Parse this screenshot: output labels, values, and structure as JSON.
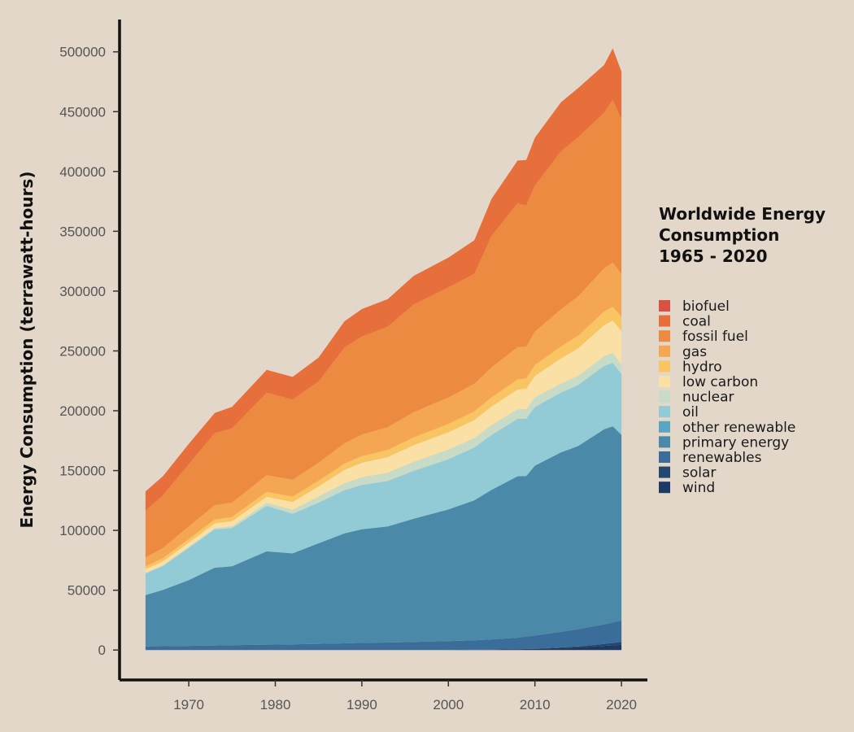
{
  "chart_data": {
    "type": "area",
    "stacked": true,
    "title": "",
    "xlabel": "",
    "ylabel": "Energy Consumption (terrawatt-hours)",
    "legend_title": [
      "Worldwide Energy",
      "Consumption",
      "1965 - 2020"
    ],
    "legend_position": "right",
    "xlim": [
      1962,
      2023
    ],
    "ylim": [
      -25000,
      527000
    ],
    "x_ticks": [
      1970,
      1980,
      1990,
      2000,
      2010,
      2020
    ],
    "y_ticks": [
      0,
      50000,
      100000,
      150000,
      200000,
      250000,
      300000,
      350000,
      400000,
      450000,
      500000
    ],
    "grid": false,
    "x": [
      1965,
      1967,
      1970,
      1973,
      1975,
      1979,
      1982,
      1985,
      1988,
      1990,
      1993,
      1996,
      2000,
      2003,
      2005,
      2008,
      2009,
      2010,
      2013,
      2015,
      2018,
      2019,
      2020
    ],
    "series": [
      {
        "name": "wind",
        "color": "#1c3a63",
        "values": [
          0,
          0,
          0,
          0,
          0,
          0,
          0,
          0,
          0,
          0,
          0,
          0,
          100,
          200,
          300,
          600,
          800,
          1000,
          1800,
          2300,
          3500,
          3900,
          4400
        ]
      },
      {
        "name": "solar",
        "color": "#24476f",
        "values": [
          0,
          0,
          0,
          0,
          0,
          0,
          0,
          0,
          0,
          0,
          0,
          0,
          0,
          0,
          0,
          50,
          100,
          100,
          400,
          700,
          1600,
          2000,
          2400
        ]
      },
      {
        "name": "renewables",
        "color": "#3a6d9a",
        "values": [
          3000,
          3200,
          3500,
          3800,
          4000,
          4500,
          4800,
          5200,
          5600,
          6000,
          6300,
          6800,
          7400,
          8000,
          8600,
          9600,
          10500,
          11000,
          13000,
          14500,
          16400,
          17100,
          18000
        ]
      },
      {
        "name": "primary energy",
        "color": "#4a89a8",
        "values": [
          43000,
          47000,
          55000,
          65000,
          66000,
          78000,
          76000,
          84000,
          92000,
          95000,
          97000,
          103000,
          110000,
          117000,
          125000,
          135000,
          134000,
          142000,
          150000,
          153000,
          163000,
          164000,
          155000
        ]
      },
      {
        "name": "other renewable",
        "color": "#5aa5c4",
        "values": [
          0,
          0,
          0,
          0,
          0,
          0,
          0,
          0,
          0,
          0,
          0,
          0,
          0,
          0,
          0,
          0,
          0,
          0,
          0,
          0,
          0,
          0,
          0
        ]
      },
      {
        "name": "oil",
        "color": "#92cad6",
        "values": [
          18000,
          20000,
          27000,
          32000,
          32000,
          38000,
          33000,
          34000,
          36000,
          37000,
          38000,
          40000,
          42000,
          44000,
          46000,
          48000,
          48000,
          49000,
          50000,
          51000,
          53000,
          53000,
          51000
        ]
      },
      {
        "name": "nuclear",
        "color": "#c8dbc7",
        "values": [
          500,
          600,
          800,
          1200,
          1500,
          2500,
          3500,
          5000,
          6000,
          6500,
          7000,
          7500,
          8000,
          8000,
          8200,
          8000,
          8000,
          8100,
          7500,
          7700,
          8100,
          8300,
          7900
        ]
      },
      {
        "name": "low carbon",
        "color": "#fbe0a6",
        "values": [
          3000,
          3200,
          3500,
          3800,
          4100,
          5000,
          6500,
          8500,
          11000,
          12000,
          13000,
          14000,
          14500,
          15000,
          15500,
          16500,
          17000,
          18000,
          21000,
          23000,
          26000,
          27000,
          28000
        ]
      },
      {
        "name": "hydro",
        "color": "#f9c462",
        "values": [
          2500,
          2700,
          3000,
          3300,
          3600,
          4200,
          4500,
          4800,
          5200,
          5500,
          6000,
          6500,
          7000,
          7300,
          7700,
          8400,
          8600,
          9000,
          10000,
          10500,
          11400,
          11600,
          11800
        ]
      },
      {
        "name": "gas",
        "color": "#f4a653",
        "values": [
          7500,
          8500,
          10500,
          12000,
          12000,
          14000,
          14000,
          15000,
          17000,
          18000,
          19000,
          21000,
          22000,
          23000,
          25000,
          27000,
          26500,
          28000,
          31000,
          33000,
          36000,
          37000,
          36000
        ]
      },
      {
        "name": "fossil fuel",
        "color": "#ed8a42",
        "values": [
          39000,
          44000,
          52000,
          60000,
          62000,
          69000,
          67000,
          68000,
          80000,
          82000,
          84000,
          90000,
          92000,
          92000,
          110000,
          120000,
          118000,
          122000,
          132000,
          133000,
          130000,
          136000,
          129000
        ]
      },
      {
        "name": "coal",
        "color": "#e66f3c",
        "values": [
          16000,
          16000,
          17000,
          17000,
          18000,
          19000,
          19000,
          20000,
          22000,
          23000,
          23000,
          24000,
          25000,
          28000,
          31000,
          36000,
          38000,
          40000,
          41000,
          41000,
          40000,
          43000,
          40000
        ]
      },
      {
        "name": "biofuel",
        "color": "#dc4f45",
        "values": [
          0,
          0,
          0,
          0,
          0,
          0,
          0,
          0,
          0,
          0,
          0,
          0,
          0,
          0,
          0,
          0,
          0,
          0,
          0,
          0,
          0,
          0,
          0
        ]
      }
    ]
  }
}
